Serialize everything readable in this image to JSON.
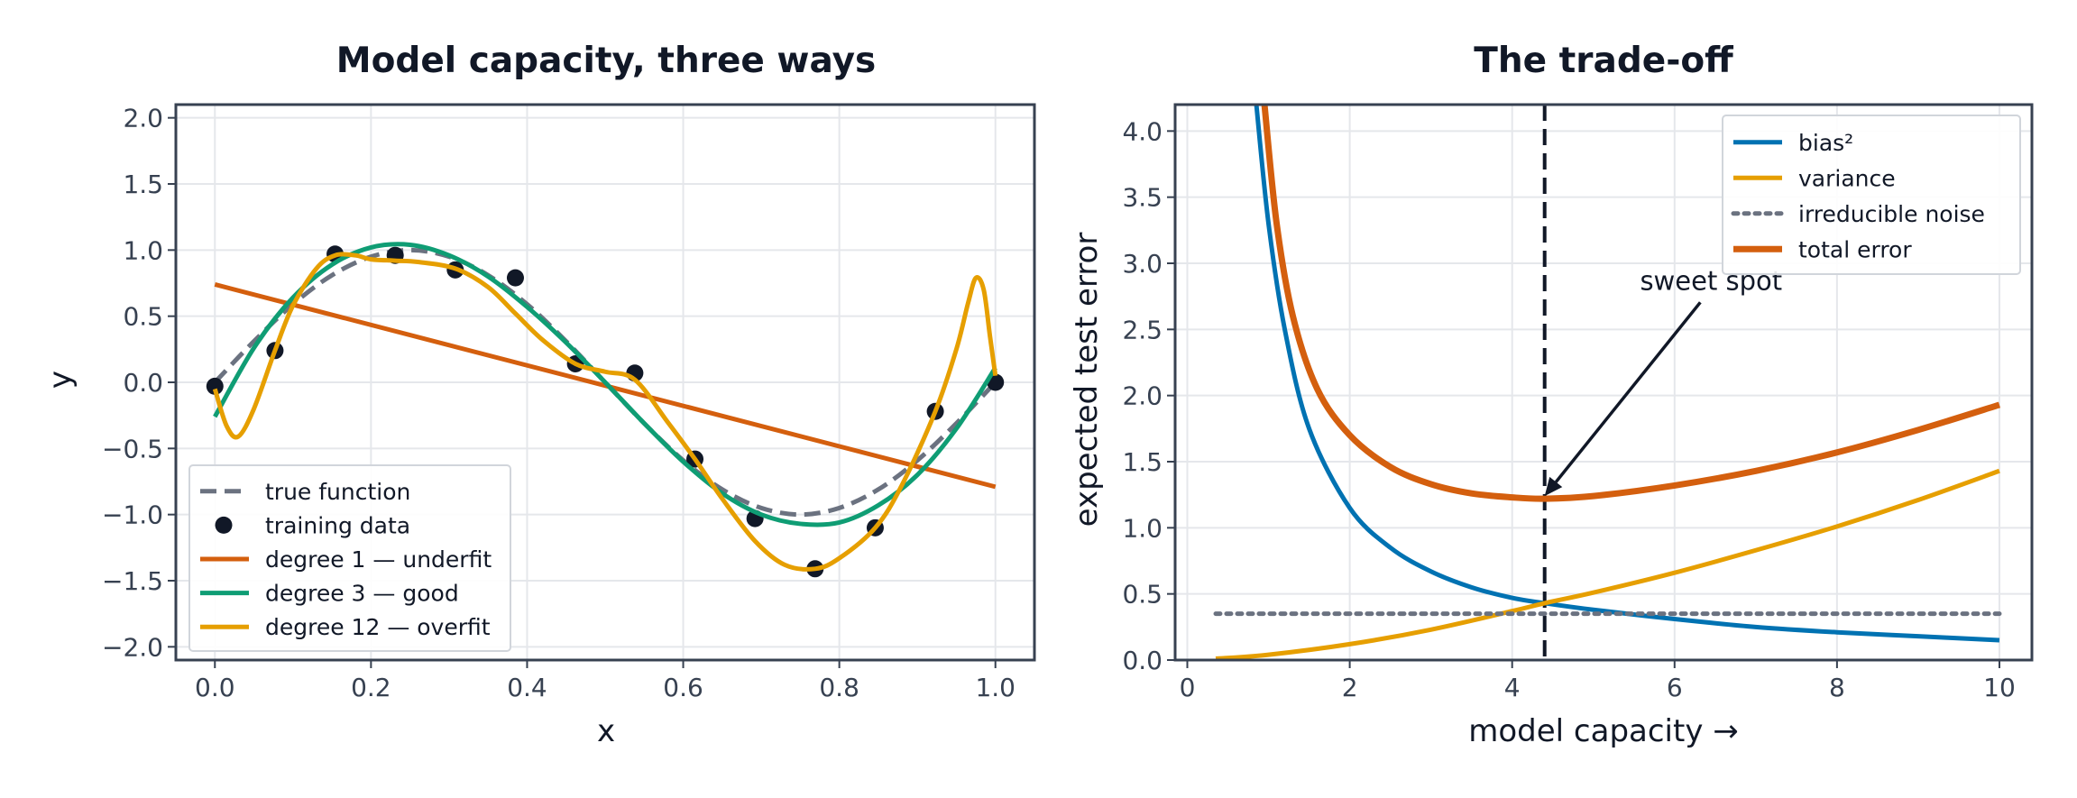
{
  "chart_data": [
    {
      "type": "line",
      "title": "Model capacity, three ways",
      "xlabel": "x",
      "ylabel": "y",
      "xlim": [
        -0.05,
        1.05
      ],
      "ylim": [
        -2.1,
        2.1
      ],
      "grid": true,
      "legend_position": "lower-left",
      "x_ticks": [
        0.0,
        0.2,
        0.4,
        0.6,
        0.8,
        1.0
      ],
      "x_tick_labels": [
        "0.0",
        "0.2",
        "0.4",
        "0.6",
        "0.8",
        "1.0"
      ],
      "y_ticks": [
        2.0,
        1.5,
        1.0,
        0.5,
        0.0,
        -0.5,
        -1.0,
        -1.5,
        -2.0
      ],
      "y_tick_labels": [
        "2.0",
        "1.5",
        "1.0",
        "0.5",
        "0.0",
        "−0.5",
        "−1.0",
        "−1.5",
        "−2.0"
      ],
      "series": [
        {
          "name": "true function",
          "style": "dashed",
          "color": "#6b7280",
          "x": [
            0.0,
            0.05,
            0.1,
            0.15,
            0.2,
            0.25,
            0.3,
            0.35,
            0.4,
            0.45,
            0.5,
            0.55,
            0.6,
            0.65,
            0.7,
            0.75,
            0.8,
            0.85,
            0.9,
            0.95,
            1.0
          ],
          "y": [
            0.0,
            0.31,
            0.59,
            0.81,
            0.95,
            1.0,
            0.95,
            0.81,
            0.59,
            0.31,
            0.0,
            -0.31,
            -0.59,
            -0.81,
            -0.95,
            -1.0,
            -0.95,
            -0.81,
            -0.59,
            -0.31,
            0.0
          ]
        },
        {
          "name": "training data",
          "style": "points",
          "color": "#111827",
          "x": [
            0.0,
            0.077,
            0.154,
            0.231,
            0.308,
            0.385,
            0.462,
            0.538,
            0.615,
            0.692,
            0.769,
            0.846,
            0.923,
            1.0
          ],
          "y": [
            -0.03,
            0.24,
            0.97,
            0.96,
            0.85,
            0.79,
            0.14,
            0.07,
            -0.58,
            -1.03,
            -1.41,
            -1.1,
            -0.22,
            0.0
          ]
        },
        {
          "name": "degree 1 — underfit",
          "style": "solid",
          "color": "#d45f0e",
          "x": [
            0.0,
            1.0
          ],
          "y": [
            0.74,
            -0.79
          ]
        },
        {
          "name": "degree 3 — good",
          "style": "solid",
          "color": "#0f9d74",
          "x": [
            0.0,
            0.05,
            0.1,
            0.15,
            0.2,
            0.25,
            0.3,
            0.35,
            0.4,
            0.45,
            0.5,
            0.55,
            0.6,
            0.65,
            0.7,
            0.75,
            0.8,
            0.85,
            0.9,
            0.95,
            1.0
          ],
          "y": [
            -0.26,
            0.26,
            0.64,
            0.89,
            1.02,
            1.04,
            0.96,
            0.8,
            0.57,
            0.3,
            0.0,
            -0.31,
            -0.6,
            -0.84,
            -1.0,
            -1.07,
            -1.06,
            -0.93,
            -0.7,
            -0.35,
            0.11
          ]
        },
        {
          "name": "degree 12 — overfit",
          "style": "solid",
          "color": "#e69f00",
          "x": [
            0.0,
            0.015,
            0.03,
            0.05,
            0.077,
            0.1,
            0.13,
            0.154,
            0.18,
            0.2,
            0.231,
            0.26,
            0.308,
            0.35,
            0.385,
            0.42,
            0.462,
            0.5,
            0.538,
            0.58,
            0.615,
            0.65,
            0.692,
            0.73,
            0.769,
            0.8,
            0.846,
            0.88,
            0.923,
            0.95,
            0.965,
            0.975,
            0.985,
            0.993,
            1.0
          ],
          "y": [
            -0.05,
            -0.33,
            -0.41,
            -0.2,
            0.24,
            0.58,
            0.86,
            0.96,
            0.96,
            0.93,
            0.92,
            0.91,
            0.86,
            0.72,
            0.52,
            0.32,
            0.14,
            0.08,
            0.02,
            -0.3,
            -0.58,
            -0.88,
            -1.2,
            -1.38,
            -1.41,
            -1.33,
            -1.1,
            -0.78,
            -0.22,
            0.25,
            0.6,
            0.79,
            0.7,
            0.35,
            0.05
          ]
        }
      ]
    },
    {
      "type": "line",
      "title": "The trade-off",
      "xlabel": "model capacity →",
      "ylabel": "expected test error",
      "xlim": [
        -0.15,
        10.4
      ],
      "ylim": [
        0.0,
        4.2
      ],
      "grid": true,
      "legend_position": "top-right",
      "x_ticks": [
        0,
        2,
        4,
        6,
        8,
        10
      ],
      "x_tick_labels": [
        "0",
        "2",
        "4",
        "6",
        "8",
        "10"
      ],
      "y_ticks": [
        0.0,
        0.5,
        1.0,
        1.5,
        2.0,
        2.5,
        3.0,
        3.5,
        4.0
      ],
      "y_tick_labels": [
        "0.0",
        "0.5",
        "1.0",
        "1.5",
        "2.0",
        "2.5",
        "3.0",
        "3.5",
        "4.0"
      ],
      "series": [
        {
          "name": "bias²",
          "style": "solid",
          "color": "#0072b2",
          "x": [
            0.85,
            1.0,
            1.2,
            1.5,
            2.0,
            2.5,
            3.0,
            3.5,
            4.0,
            4.4,
            5.0,
            6.0,
            7.0,
            8.0,
            9.0,
            10.0
          ],
          "y": [
            4.2,
            3.3,
            2.5,
            1.75,
            1.15,
            0.85,
            0.67,
            0.55,
            0.47,
            0.43,
            0.38,
            0.31,
            0.25,
            0.21,
            0.18,
            0.15
          ]
        },
        {
          "name": "variance",
          "style": "solid",
          "color": "#e69f00",
          "x": [
            0.35,
            1.0,
            2.0,
            3.0,
            4.0,
            4.4,
            5.0,
            6.0,
            7.0,
            8.0,
            9.0,
            10.0
          ],
          "y": [
            0.01,
            0.04,
            0.12,
            0.23,
            0.37,
            0.43,
            0.51,
            0.66,
            0.83,
            1.01,
            1.21,
            1.43
          ]
        },
        {
          "name": "irreducible noise",
          "style": "dotted",
          "color": "#6b7280",
          "x": [
            0.35,
            10.0
          ],
          "y": [
            0.35,
            0.35
          ]
        },
        {
          "name": "total error",
          "style": "solid",
          "color": "#d45f0e",
          "x": [
            0.95,
            1.1,
            1.3,
            1.6,
            2.0,
            2.5,
            3.0,
            3.5,
            4.0,
            4.4,
            5.0,
            6.0,
            7.0,
            8.0,
            9.0,
            10.0
          ],
          "y": [
            4.2,
            3.3,
            2.6,
            2.05,
            1.7,
            1.46,
            1.33,
            1.26,
            1.23,
            1.22,
            1.24,
            1.32,
            1.43,
            1.57,
            1.74,
            1.93
          ]
        }
      ],
      "annotations": [
        {
          "type": "vline",
          "x": 4.4,
          "style": "dashed",
          "color": "#111827"
        },
        {
          "type": "arrow",
          "text": "sweet spot",
          "text_x": 6.45,
          "text_y": 2.8,
          "tip_x": 4.4,
          "tip_y": 1.24,
          "color": "#111827"
        }
      ]
    }
  ]
}
